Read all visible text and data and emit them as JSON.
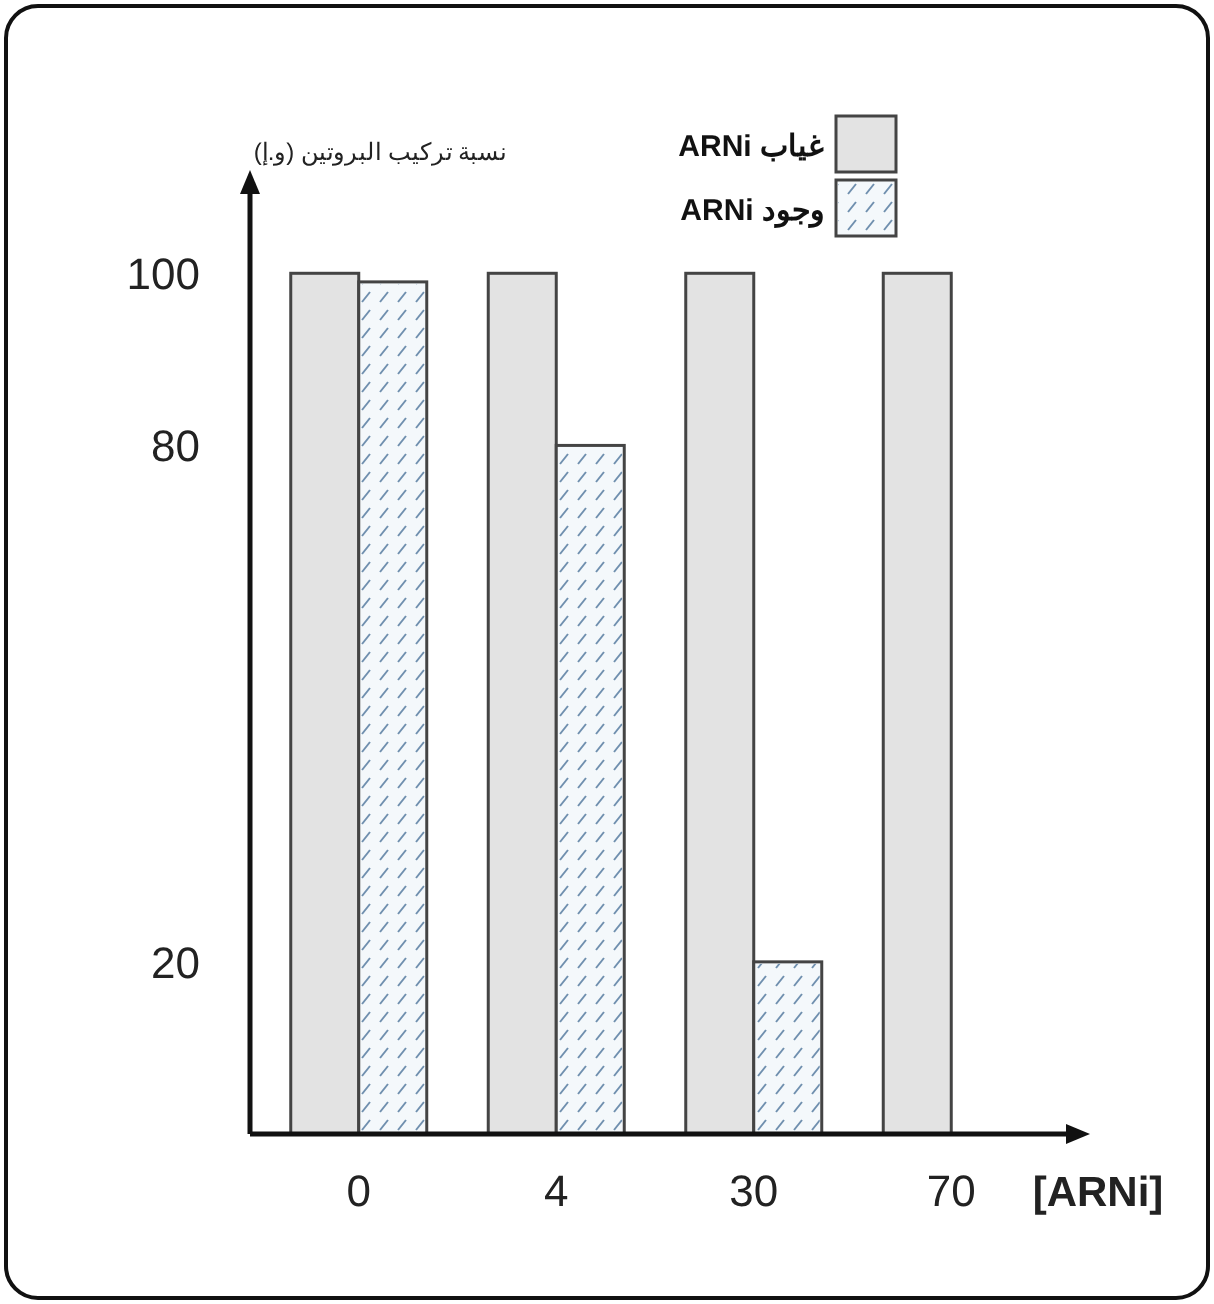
{
  "chart_data": {
    "type": "bar",
    "xlabel": "[ARNi]",
    "ylabel": "نسبة تركيب البروتين (و.إ)",
    "categories": [
      "0",
      "4",
      "30",
      "70"
    ],
    "series": [
      {
        "name": "غياب ARNi",
        "color": "#e3e3e3",
        "values": [
          100,
          100,
          100,
          100
        ]
      },
      {
        "name": "وجود ARNi",
        "color": "#f4f8fb",
        "values": [
          99,
          80,
          20,
          0
        ]
      }
    ],
    "ylim": [
      0,
      112
    ],
    "yticks": [
      20,
      80,
      100
    ],
    "grid": false,
    "legend": "top right"
  }
}
